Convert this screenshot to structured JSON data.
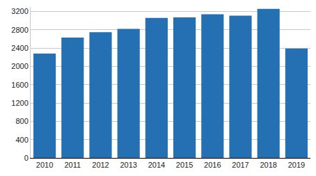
{
  "chart_data": {
    "type": "bar",
    "categories": [
      "2010",
      "2011",
      "2012",
      "2013",
      "2014",
      "2015",
      "2016",
      "2017",
      "2018",
      "2019"
    ],
    "values": [
      2280,
      2630,
      2750,
      2820,
      3060,
      3070,
      3140,
      3110,
      3260,
      2390
    ],
    "color": "#2470b3",
    "ylim": [
      0,
      3300
    ],
    "yticks": [
      0,
      400,
      800,
      1200,
      1600,
      2000,
      2400,
      2800,
      3200
    ],
    "grid": true
  }
}
